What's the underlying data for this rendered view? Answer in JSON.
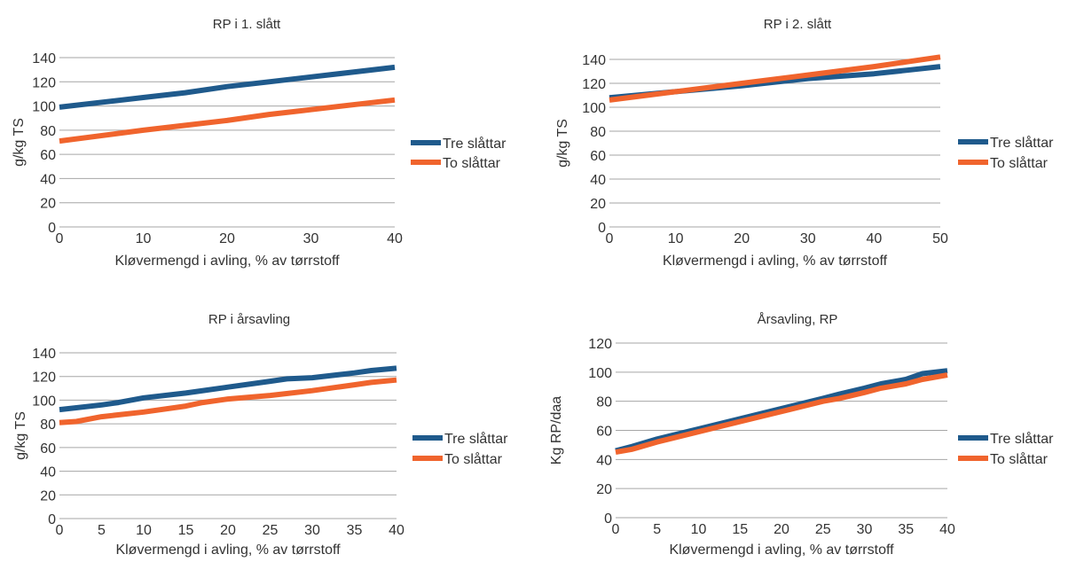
{
  "chart_data": [
    {
      "type": "line",
      "title": "RP i 1. slått",
      "xlabel": "Kløvermengd i avling, % av tørrstoff",
      "ylabel": "g/kg TS",
      "x_ticks": [
        0,
        10,
        20,
        30,
        40
      ],
      "y_ticks": [
        0,
        20,
        40,
        60,
        80,
        100,
        120,
        140
      ],
      "xlim": [
        0,
        40
      ],
      "ylim": [
        0,
        140
      ],
      "grid": true,
      "legend_position": "right",
      "series": [
        {
          "name": "Tre slåttar",
          "color": "#1f5a8c",
          "x": [
            0,
            10,
            15,
            20,
            25,
            30,
            35,
            40
          ],
          "y": [
            99,
            107,
            111,
            116,
            120,
            124,
            128,
            132
          ]
        },
        {
          "name": "To slåttar",
          "color": "#f0642d",
          "x": [
            0,
            10,
            15,
            20,
            25,
            30,
            35,
            40
          ],
          "y": [
            71,
            80,
            84,
            88,
            93,
            97,
            101,
            105
          ]
        }
      ]
    },
    {
      "type": "line",
      "title": "RP i 2. slått",
      "xlabel": "Kløvermengd i avling, % av tørrstoff",
      "ylabel": "g/kg TS",
      "x_ticks": [
        0,
        10,
        20,
        30,
        40,
        50
      ],
      "y_ticks": [
        0,
        20,
        40,
        60,
        80,
        100,
        120,
        140
      ],
      "xlim": [
        0,
        50
      ],
      "ylim": [
        0,
        140
      ],
      "grid": true,
      "legend_position": "right",
      "series": [
        {
          "name": "Tre slåttar",
          "color": "#1f5a8c",
          "x": [
            0,
            10,
            20,
            30,
            40,
            45,
            50
          ],
          "y": [
            108,
            113,
            118,
            124,
            128,
            131,
            134
          ]
        },
        {
          "name": "To slåttar",
          "color": "#f0642d",
          "x": [
            0,
            10,
            20,
            30,
            40,
            45,
            50
          ],
          "y": [
            106,
            113,
            120,
            127,
            134,
            138,
            142
          ]
        }
      ]
    },
    {
      "type": "line",
      "title": "RP i årsavling",
      "xlabel": "Kløvermengd i avling, % av tørrstoff",
      "ylabel": "g/kg TS",
      "x_ticks": [
        0,
        5,
        10,
        15,
        20,
        25,
        30,
        35,
        40
      ],
      "y_ticks": [
        0,
        20,
        40,
        60,
        80,
        100,
        120,
        140
      ],
      "xlim": [
        0,
        40
      ],
      "ylim": [
        0,
        140
      ],
      "grid": true,
      "legend_position": "right",
      "series": [
        {
          "name": "Tre slåttar",
          "color": "#1f5a8c",
          "x": [
            0,
            5,
            7,
            10,
            15,
            20,
            25,
            27,
            30,
            35,
            37,
            40
          ],
          "y": [
            92,
            96,
            98,
            102,
            106,
            111,
            116,
            118,
            119,
            123,
            125,
            127
          ]
        },
        {
          "name": "To slåttar",
          "color": "#f0642d",
          "x": [
            0,
            2,
            5,
            10,
            15,
            17,
            20,
            25,
            30,
            35,
            37,
            40
          ],
          "y": [
            81,
            82,
            86,
            90,
            95,
            98,
            101,
            104,
            108,
            113,
            115,
            117
          ]
        }
      ]
    },
    {
      "type": "line",
      "title": "Årsavling, RP",
      "xlabel": "Kløvermengd i avling, % av tørrstoff",
      "ylabel": "Kg RP/daa",
      "x_ticks": [
        0,
        5,
        10,
        15,
        20,
        25,
        30,
        35,
        40
      ],
      "y_ticks": [
        0,
        20,
        40,
        60,
        80,
        100,
        120
      ],
      "xlim": [
        0,
        40
      ],
      "ylim": [
        0,
        120
      ],
      "grid": true,
      "legend_position": "right",
      "series": [
        {
          "name": "Tre slåttar",
          "color": "#1f5a8c",
          "x": [
            0,
            2,
            5,
            10,
            15,
            20,
            25,
            27,
            30,
            32,
            35,
            37,
            40
          ],
          "y": [
            46,
            49,
            54,
            61,
            68,
            75,
            82,
            85,
            89,
            92,
            95,
            99,
            101
          ]
        },
        {
          "name": "To slåttar",
          "color": "#f0642d",
          "x": [
            0,
            2,
            5,
            10,
            15,
            20,
            25,
            27,
            30,
            32,
            35,
            37,
            40
          ],
          "y": [
            45,
            47,
            52,
            59,
            66,
            73,
            80,
            82,
            86,
            89,
            92,
            95,
            98
          ]
        }
      ]
    }
  ]
}
